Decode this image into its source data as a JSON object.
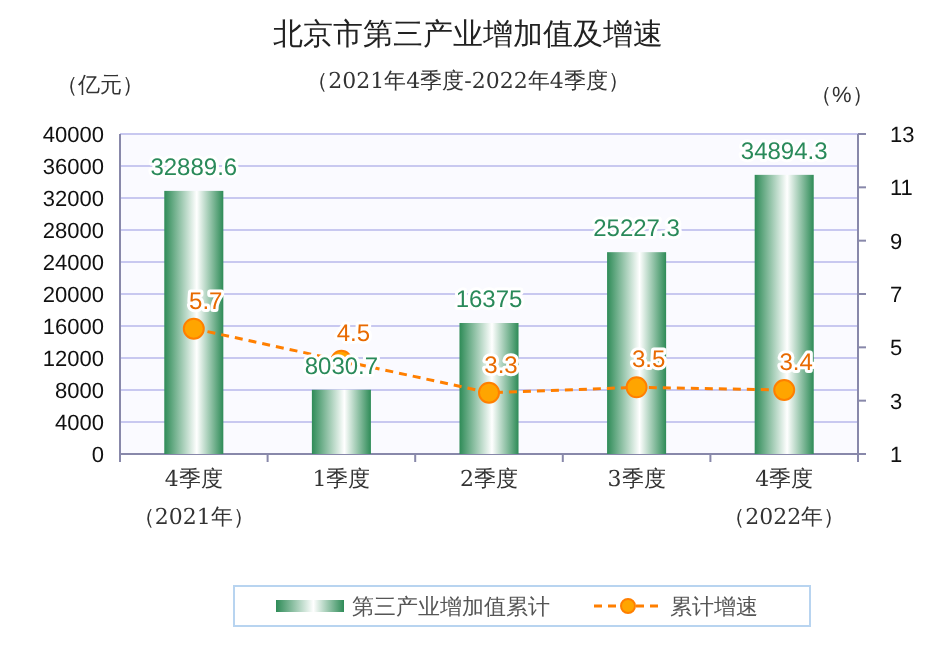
{
  "chart_data": {
    "type": "bar",
    "title": "北京市第三产业增加值及增速",
    "subtitle": "（2021年4季度-2022年4季度）",
    "ylabel": "（亿元）",
    "y2label": "（%）",
    "categories": [
      "4季度（2021年）",
      "1季度",
      "2季度",
      "3季度",
      "4季度（2022年）"
    ],
    "series": [
      {
        "name": "第三产业增加值累计",
        "color": "#2e8b57",
        "values": [
          32889.6,
          8030.7,
          16375,
          25227.3,
          34894.3
        ]
      },
      {
        "name": "累计增速",
        "type": "line",
        "axis": "y2",
        "color": "#ff7f00",
        "values": [
          5.7,
          4.5,
          3.3,
          3.5,
          3.4
        ]
      }
    ],
    "ylim": [
      0,
      40000
    ],
    "yticks": [
      0,
      4000,
      8000,
      12000,
      16000,
      20000,
      24000,
      28000,
      32000,
      36000,
      40000
    ],
    "y2lim": [
      1,
      13
    ],
    "y2ticks": [
      1,
      3,
      5,
      7,
      9,
      11,
      13
    ],
    "grid": "y",
    "legend": "bottom",
    "marker": "circle",
    "line_style": "dashed",
    "data_labels": true
  }
}
